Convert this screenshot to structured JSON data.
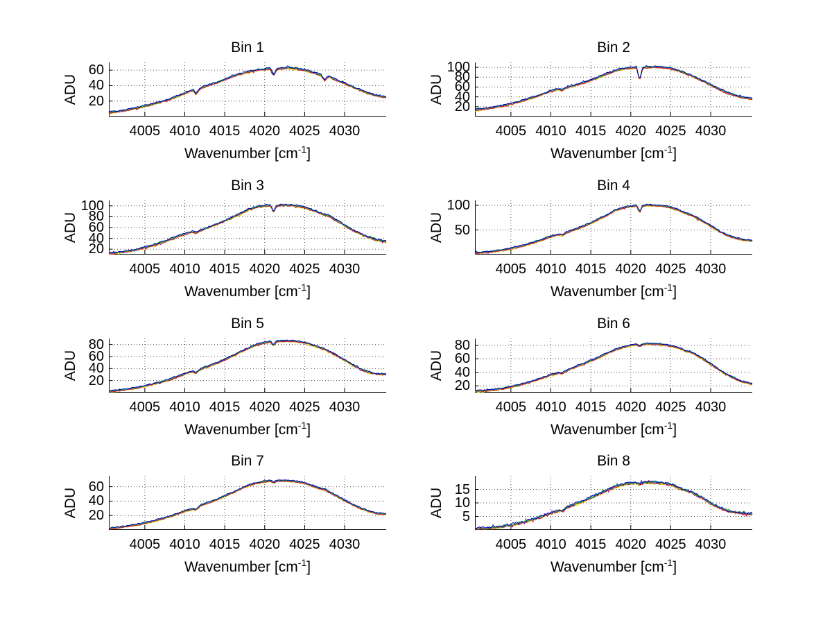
{
  "figure": {
    "background": "#ffffff"
  },
  "chart_data": {
    "type": "line",
    "ylabel": "ADU",
    "xlabel_pre": "Wavenumber [cm",
    "xlabel_sup": "-1",
    "xlabel_post": "]",
    "grid": "dotted, on",
    "legend": "none",
    "x_range": [
      4000.5,
      4035.2
    ],
    "x_ticks": [
      4005,
      4010,
      4015,
      4020,
      4025,
      4030
    ],
    "anchors_x": [
      4000.5,
      4002,
      4004,
      4006,
      4008,
      4010,
      4011,
      4011.4,
      4012,
      4014,
      4015,
      4016,
      4017,
      4018,
      4019,
      4020,
      4020.7,
      4021.1,
      4021.5,
      4022,
      4023,
      4024,
      4025,
      4026,
      4027,
      4027.5,
      4028,
      4029,
      4030,
      4031,
      4032,
      4033,
      4034,
      4035.2
    ],
    "series_note": "six nearly-identical overlapping spectra in MATLAB color order",
    "series": [
      {
        "name": "yellow",
        "color": "#d6d600",
        "dy": 1.1
      },
      {
        "name": "magenta",
        "color": "#b000b0",
        "dy": 0.4
      },
      {
        "name": "cyan",
        "color": "#00b5b5",
        "dy": -0.3
      },
      {
        "name": "red",
        "color": "#cc2020",
        "dy": 0.6
      },
      {
        "name": "green",
        "color": "#1faf1f",
        "dy": -0.6
      },
      {
        "name": "blue",
        "color": "#0000b8",
        "dy": -1.0
      }
    ],
    "subplots": [
      {
        "title": "Bin 1",
        "y_ticks": [
          20,
          40,
          60
        ],
        "y_range": [
          0,
          70
        ],
        "noise": 0.9,
        "y": [
          5,
          7,
          11,
          16,
          22,
          30,
          34,
          29,
          37,
          44,
          48,
          52,
          55,
          58,
          60,
          61,
          62,
          53,
          61,
          62,
          63,
          62,
          60,
          57,
          54,
          47,
          52,
          47,
          43,
          38,
          34,
          30,
          27,
          25
        ]
      },
      {
        "title": "Bin 2",
        "y_ticks": [
          20,
          40,
          60,
          80,
          100
        ],
        "y_range": [
          0,
          110
        ],
        "noise": 1.3,
        "y": [
          13,
          16,
          22,
          30,
          40,
          52,
          56,
          53,
          59,
          68,
          74,
          80,
          87,
          93,
          97,
          99,
          100,
          74,
          99,
          100,
          101,
          100,
          98,
          93,
          87,
          84,
          80,
          72,
          64,
          56,
          49,
          43,
          39,
          36
        ]
      },
      {
        "title": "Bin 3",
        "y_ticks": [
          20,
          40,
          60,
          80,
          100
        ],
        "y_range": [
          10,
          110
        ],
        "noise": 1.3,
        "y": [
          12,
          14,
          19,
          27,
          37,
          48,
          52,
          50,
          55,
          66,
          72,
          79,
          86,
          93,
          98,
          100,
          101,
          88,
          100,
          101,
          101,
          100,
          97,
          92,
          86,
          84,
          81,
          73,
          64,
          55,
          48,
          42,
          37,
          34
        ]
      },
      {
        "title": "Bin 4",
        "y_ticks": [
          50,
          100
        ],
        "y_range": [
          0,
          110
        ],
        "noise": 1.2,
        "y": [
          3,
          5,
          9,
          16,
          25,
          37,
          41,
          39,
          45,
          57,
          64,
          72,
          80,
          89,
          95,
          98,
          100,
          86,
          99,
          100,
          100,
          99,
          96,
          90,
          83,
          81,
          77,
          68,
          58,
          48,
          40,
          34,
          30,
          28
        ]
      },
      {
        "title": "Bin 5",
        "y_ticks": [
          20,
          40,
          60,
          80
        ],
        "y_range": [
          0,
          90
        ],
        "noise": 1.0,
        "y": [
          2,
          4,
          8,
          14,
          21,
          31,
          35,
          33,
          39,
          49,
          55,
          61,
          68,
          74,
          80,
          83,
          85,
          78,
          85,
          86,
          86,
          85,
          83,
          79,
          74,
          72,
          69,
          62,
          54,
          46,
          39,
          34,
          31,
          30
        ]
      },
      {
        "title": "Bin 6",
        "y_ticks": [
          20,
          40,
          60,
          80
        ],
        "y_range": [
          10,
          90
        ],
        "noise": 0.8,
        "y": [
          12,
          13,
          16,
          21,
          28,
          36,
          39,
          38,
          43,
          52,
          57,
          62,
          68,
          73,
          77,
          80,
          81,
          79,
          81,
          82,
          82,
          81,
          79,
          76,
          71,
          70,
          67,
          60,
          52,
          44,
          37,
          31,
          26,
          23
        ]
      },
      {
        "title": "Bin 7",
        "y_ticks": [
          20,
          40,
          60
        ],
        "y_range": [
          0,
          75
        ],
        "noise": 0.7,
        "y": [
          2,
          4,
          7,
          12,
          18,
          26,
          29,
          28,
          34,
          42,
          47,
          52,
          57,
          62,
          65,
          67,
          68,
          66,
          68,
          68,
          68,
          67,
          65,
          61,
          57,
          56,
          53,
          47,
          41,
          35,
          30,
          26,
          23,
          22
        ]
      },
      {
        "title": "Bin 8",
        "y_ticks": [
          5,
          10,
          15
        ],
        "y_range": [
          0,
          20
        ],
        "noise": 0.4,
        "y": [
          0.4,
          0.7,
          1.3,
          2.4,
          4,
          6.2,
          7.1,
          6.8,
          8.2,
          10.6,
          11.9,
          13.2,
          14.6,
          15.9,
          16.8,
          17.3,
          17.5,
          16.9,
          17.4,
          17.6,
          17.5,
          17.3,
          16.7,
          15.6,
          14.3,
          13.9,
          13.3,
          11.7,
          9.9,
          8.3,
          7.2,
          6.5,
          6.1,
          6
        ]
      }
    ]
  }
}
